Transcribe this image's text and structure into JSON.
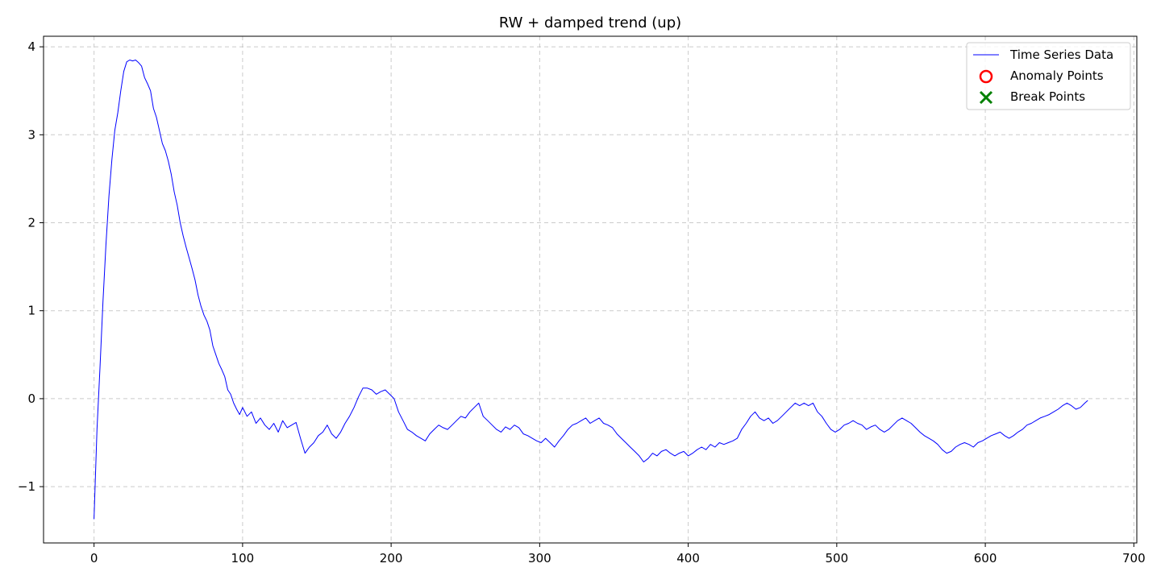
{
  "chart_data": {
    "type": "line",
    "title": "RW + damped trend (up)",
    "xlabel": "",
    "ylabel": "",
    "xlim": [
      -34,
      702
    ],
    "ylim": [
      -1.64,
      4.12
    ],
    "xticks": [
      0,
      100,
      200,
      300,
      400,
      500,
      600,
      700
    ],
    "yticks": [
      -1,
      0,
      1,
      2,
      3,
      4
    ],
    "xtick_labels": [
      "0",
      "100",
      "200",
      "300",
      "400",
      "500",
      "600",
      "700"
    ],
    "ytick_labels": [
      "−1",
      "0",
      "1",
      "2",
      "3",
      "4"
    ],
    "grid": true,
    "legend": {
      "placement": "top-right",
      "entries": [
        {
          "label": "Time Series Data",
          "marker": "line",
          "color": "#0000ff"
        },
        {
          "label": "Anomaly Points",
          "marker": "circle",
          "color": "#ff0000"
        },
        {
          "label": "Break Points",
          "marker": "x",
          "color": "#008000"
        }
      ]
    },
    "series": [
      {
        "name": "Time Series Data",
        "color": "#0000ff",
        "points": [
          [
            0,
            -1.37
          ],
          [
            2,
            -0.35
          ],
          [
            4,
            0.35
          ],
          [
            6,
            1.1
          ],
          [
            8,
            1.75
          ],
          [
            10,
            2.3
          ],
          [
            12,
            2.72
          ],
          [
            14,
            3.05
          ],
          [
            16,
            3.25
          ],
          [
            18,
            3.5
          ],
          [
            20,
            3.72
          ],
          [
            22,
            3.83
          ],
          [
            24,
            3.85
          ],
          [
            26,
            3.84
          ],
          [
            28,
            3.85
          ],
          [
            30,
            3.82
          ],
          [
            32,
            3.78
          ],
          [
            34,
            3.65
          ],
          [
            36,
            3.58
          ],
          [
            38,
            3.5
          ],
          [
            40,
            3.3
          ],
          [
            42,
            3.2
          ],
          [
            44,
            3.05
          ],
          [
            46,
            2.9
          ],
          [
            48,
            2.82
          ],
          [
            50,
            2.7
          ],
          [
            52,
            2.55
          ],
          [
            54,
            2.35
          ],
          [
            56,
            2.2
          ],
          [
            58,
            2.0
          ],
          [
            60,
            1.85
          ],
          [
            62,
            1.72
          ],
          [
            64,
            1.6
          ],
          [
            66,
            1.48
          ],
          [
            68,
            1.35
          ],
          [
            70,
            1.18
          ],
          [
            72,
            1.05
          ],
          [
            74,
            0.95
          ],
          [
            76,
            0.88
          ],
          [
            78,
            0.78
          ],
          [
            80,
            0.6
          ],
          [
            82,
            0.5
          ],
          [
            84,
            0.4
          ],
          [
            86,
            0.33
          ],
          [
            88,
            0.25
          ],
          [
            90,
            0.1
          ],
          [
            92,
            0.05
          ],
          [
            94,
            -0.05
          ],
          [
            96,
            -0.12
          ],
          [
            98,
            -0.18
          ],
          [
            100,
            -0.1
          ],
          [
            103,
            -0.2
          ],
          [
            106,
            -0.15
          ],
          [
            109,
            -0.28
          ],
          [
            112,
            -0.22
          ],
          [
            115,
            -0.3
          ],
          [
            118,
            -0.35
          ],
          [
            121,
            -0.28
          ],
          [
            124,
            -0.38
          ],
          [
            127,
            -0.25
          ],
          [
            130,
            -0.33
          ],
          [
            133,
            -0.3
          ],
          [
            136,
            -0.27
          ],
          [
            139,
            -0.45
          ],
          [
            142,
            -0.62
          ],
          [
            145,
            -0.55
          ],
          [
            148,
            -0.5
          ],
          [
            151,
            -0.42
          ],
          [
            154,
            -0.38
          ],
          [
            157,
            -0.3
          ],
          [
            160,
            -0.4
          ],
          [
            163,
            -0.45
          ],
          [
            166,
            -0.38
          ],
          [
            169,
            -0.28
          ],
          [
            172,
            -0.2
          ],
          [
            175,
            -0.1
          ],
          [
            178,
            0.02
          ],
          [
            181,
            0.12
          ],
          [
            184,
            0.12
          ],
          [
            187,
            0.1
          ],
          [
            190,
            0.05
          ],
          [
            193,
            0.08
          ],
          [
            196,
            0.1
          ],
          [
            199,
            0.05
          ],
          [
            202,
            0.0
          ],
          [
            205,
            -0.15
          ],
          [
            208,
            -0.25
          ],
          [
            211,
            -0.35
          ],
          [
            214,
            -0.38
          ],
          [
            217,
            -0.42
          ],
          [
            220,
            -0.45
          ],
          [
            223,
            -0.48
          ],
          [
            226,
            -0.4
          ],
          [
            229,
            -0.35
          ],
          [
            232,
            -0.3
          ],
          [
            235,
            -0.33
          ],
          [
            238,
            -0.35
          ],
          [
            241,
            -0.3
          ],
          [
            244,
            -0.25
          ],
          [
            247,
            -0.2
          ],
          [
            250,
            -0.22
          ],
          [
            253,
            -0.15
          ],
          [
            256,
            -0.1
          ],
          [
            259,
            -0.05
          ],
          [
            262,
            -0.2
          ],
          [
            265,
            -0.25
          ],
          [
            268,
            -0.3
          ],
          [
            271,
            -0.35
          ],
          [
            274,
            -0.38
          ],
          [
            277,
            -0.32
          ],
          [
            280,
            -0.35
          ],
          [
            283,
            -0.3
          ],
          [
            286,
            -0.33
          ],
          [
            289,
            -0.4
          ],
          [
            292,
            -0.42
          ],
          [
            295,
            -0.45
          ],
          [
            298,
            -0.48
          ],
          [
            301,
            -0.5
          ],
          [
            304,
            -0.45
          ],
          [
            307,
            -0.5
          ],
          [
            310,
            -0.55
          ],
          [
            313,
            -0.48
          ],
          [
            316,
            -0.42
          ],
          [
            319,
            -0.35
          ],
          [
            322,
            -0.3
          ],
          [
            325,
            -0.28
          ],
          [
            328,
            -0.25
          ],
          [
            331,
            -0.22
          ],
          [
            334,
            -0.28
          ],
          [
            337,
            -0.25
          ],
          [
            340,
            -0.22
          ],
          [
            343,
            -0.28
          ],
          [
            346,
            -0.3
          ],
          [
            349,
            -0.33
          ],
          [
            352,
            -0.4
          ],
          [
            355,
            -0.45
          ],
          [
            358,
            -0.5
          ],
          [
            361,
            -0.55
          ],
          [
            364,
            -0.6
          ],
          [
            367,
            -0.65
          ],
          [
            370,
            -0.72
          ],
          [
            373,
            -0.68
          ],
          [
            376,
            -0.62
          ],
          [
            379,
            -0.65
          ],
          [
            382,
            -0.6
          ],
          [
            385,
            -0.58
          ],
          [
            388,
            -0.62
          ],
          [
            391,
            -0.65
          ],
          [
            394,
            -0.62
          ],
          [
            397,
            -0.6
          ],
          [
            400,
            -0.65
          ],
          [
            403,
            -0.62
          ],
          [
            406,
            -0.58
          ],
          [
            409,
            -0.55
          ],
          [
            412,
            -0.58
          ],
          [
            415,
            -0.52
          ],
          [
            418,
            -0.55
          ],
          [
            421,
            -0.5
          ],
          [
            424,
            -0.52
          ],
          [
            427,
            -0.5
          ],
          [
            430,
            -0.48
          ],
          [
            433,
            -0.45
          ],
          [
            436,
            -0.35
          ],
          [
            439,
            -0.28
          ],
          [
            442,
            -0.2
          ],
          [
            445,
            -0.15
          ],
          [
            448,
            -0.22
          ],
          [
            451,
            -0.25
          ],
          [
            454,
            -0.22
          ],
          [
            457,
            -0.28
          ],
          [
            460,
            -0.25
          ],
          [
            463,
            -0.2
          ],
          [
            466,
            -0.15
          ],
          [
            469,
            -0.1
          ],
          [
            472,
            -0.05
          ],
          [
            475,
            -0.08
          ],
          [
            478,
            -0.05
          ],
          [
            481,
            -0.08
          ],
          [
            484,
            -0.05
          ],
          [
            487,
            -0.15
          ],
          [
            490,
            -0.2
          ],
          [
            493,
            -0.28
          ],
          [
            496,
            -0.35
          ],
          [
            499,
            -0.38
          ],
          [
            502,
            -0.35
          ],
          [
            505,
            -0.3
          ],
          [
            508,
            -0.28
          ],
          [
            511,
            -0.25
          ],
          [
            514,
            -0.28
          ],
          [
            517,
            -0.3
          ],
          [
            520,
            -0.35
          ],
          [
            523,
            -0.32
          ],
          [
            526,
            -0.3
          ],
          [
            529,
            -0.35
          ],
          [
            532,
            -0.38
          ],
          [
            535,
            -0.35
          ],
          [
            538,
            -0.3
          ],
          [
            541,
            -0.25
          ],
          [
            544,
            -0.22
          ],
          [
            547,
            -0.25
          ],
          [
            550,
            -0.28
          ],
          [
            553,
            -0.33
          ],
          [
            556,
            -0.38
          ],
          [
            559,
            -0.42
          ],
          [
            562,
            -0.45
          ],
          [
            565,
            -0.48
          ],
          [
            568,
            -0.52
          ],
          [
            571,
            -0.58
          ],
          [
            574,
            -0.62
          ],
          [
            577,
            -0.6
          ],
          [
            580,
            -0.55
          ],
          [
            583,
            -0.52
          ],
          [
            586,
            -0.5
          ],
          [
            589,
            -0.52
          ],
          [
            592,
            -0.55
          ],
          [
            595,
            -0.5
          ],
          [
            598,
            -0.48
          ],
          [
            601,
            -0.45
          ],
          [
            604,
            -0.42
          ],
          [
            607,
            -0.4
          ],
          [
            610,
            -0.38
          ],
          [
            613,
            -0.42
          ],
          [
            616,
            -0.45
          ],
          [
            619,
            -0.42
          ],
          [
            622,
            -0.38
          ],
          [
            625,
            -0.35
          ],
          [
            628,
            -0.3
          ],
          [
            631,
            -0.28
          ],
          [
            634,
            -0.25
          ],
          [
            637,
            -0.22
          ],
          [
            640,
            -0.2
          ],
          [
            643,
            -0.18
          ],
          [
            646,
            -0.15
          ],
          [
            649,
            -0.12
          ],
          [
            652,
            -0.08
          ],
          [
            655,
            -0.05
          ],
          [
            658,
            -0.08
          ],
          [
            661,
            -0.12
          ],
          [
            664,
            -0.1
          ],
          [
            667,
            -0.05
          ],
          [
            669,
            -0.02
          ]
        ]
      }
    ]
  }
}
